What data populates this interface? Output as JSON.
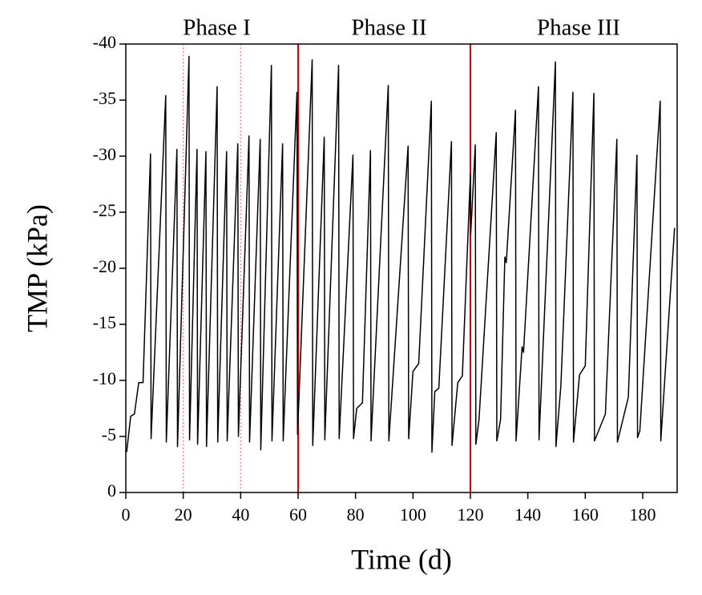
{
  "chart_data": {
    "type": "line",
    "x_label": "Time (d)",
    "y_label": "TMP (kPa)",
    "xlim": [
      0,
      192
    ],
    "ylim": [
      0,
      -40
    ],
    "xticks": [
      0,
      20,
      40,
      60,
      80,
      100,
      120,
      140,
      160,
      180
    ],
    "yticks": [
      0,
      -5,
      -10,
      -15,
      -20,
      -25,
      -30,
      -35,
      -40
    ],
    "color": "#000000",
    "x": [
      0.3,
      1.7,
      3,
      4.5,
      6,
      8.6,
      8.8,
      13.9,
      14.1,
      17.8,
      18,
      22,
      22.2,
      24.8,
      25,
      27.9,
      28.1,
      31.8,
      32,
      35.1,
      35.3,
      39,
      39.2,
      42.9,
      43.1,
      46.8,
      47,
      50.7,
      50.9,
      54.6,
      54.8,
      59.6,
      59.8,
      64.9,
      65.1,
      69.1,
      69.3,
      74.1,
      74.3,
      79.1,
      79.3,
      80.4,
      82.4,
      85.2,
      85.4,
      91.4,
      91.6,
      98.3,
      98.5,
      100,
      102,
      106.4,
      106.6,
      107.6,
      109,
      113.4,
      113.6,
      115.6,
      117.2,
      120,
      120.1,
      121.7,
      121.9,
      123,
      129,
      129.2,
      130.5,
      132,
      132.5,
      135.7,
      135.9,
      138,
      138.5,
      143.7,
      143.9,
      149.6,
      149.8,
      151.5,
      155.7,
      155.9,
      158,
      160,
      163,
      163.2,
      167,
      171,
      171.2,
      175,
      178,
      178.2,
      179,
      186.1,
      186.3,
      191.1
    ],
    "values": [
      -3.6,
      -6.8,
      -7,
      -9.8,
      -9.8,
      -30.2,
      -4.8,
      -35.4,
      -4.5,
      -30.6,
      -4.1,
      -38.9,
      -4.7,
      -30.6,
      -4.3,
      -30.4,
      -4.1,
      -36.2,
      -4.5,
      -30.4,
      -4.6,
      -31.1,
      -5,
      -31.8,
      -4.5,
      -31.5,
      -3.8,
      -38.1,
      -4.6,
      -31.1,
      -4.6,
      -35.7,
      -5.2,
      -38.6,
      -4.2,
      -31.7,
      -4.7,
      -38.1,
      -4.8,
      -30.1,
      -4.8,
      -7.5,
      -8,
      -30.5,
      -4.6,
      -36.3,
      -4.6,
      -30.9,
      -4.8,
      -10.8,
      -11.5,
      -34.9,
      -3.6,
      -9,
      -9.3,
      -31.3,
      -4.2,
      -9.8,
      -10.4,
      -28.4,
      -23,
      -31,
      -4.3,
      -6.5,
      -32.1,
      -4.6,
      -6.5,
      -21,
      -20.5,
      -34.1,
      -4.6,
      -13,
      -12.5,
      -36.2,
      -4.7,
      -38.4,
      -4.1,
      -9.5,
      -35.7,
      -4.5,
      -10.5,
      -11.3,
      -35.6,
      -4.6,
      -7,
      -31.5,
      -4.5,
      -8.5,
      -30.1,
      -4.9,
      -5.5,
      -34.9,
      -4.6,
      -23.6
    ],
    "reference_lines": [
      {
        "x": 20,
        "color": "#e06060",
        "style": "dotted"
      },
      {
        "x": 40,
        "color": "#e06060",
        "style": "dotted"
      },
      {
        "x": 60,
        "color": "#dd0000",
        "style": "solid"
      },
      {
        "x": 120,
        "color": "#dd0000",
        "style": "solid"
      }
    ],
    "annotations": [
      "Phase I",
      "Phase II",
      "Phase III"
    ]
  }
}
